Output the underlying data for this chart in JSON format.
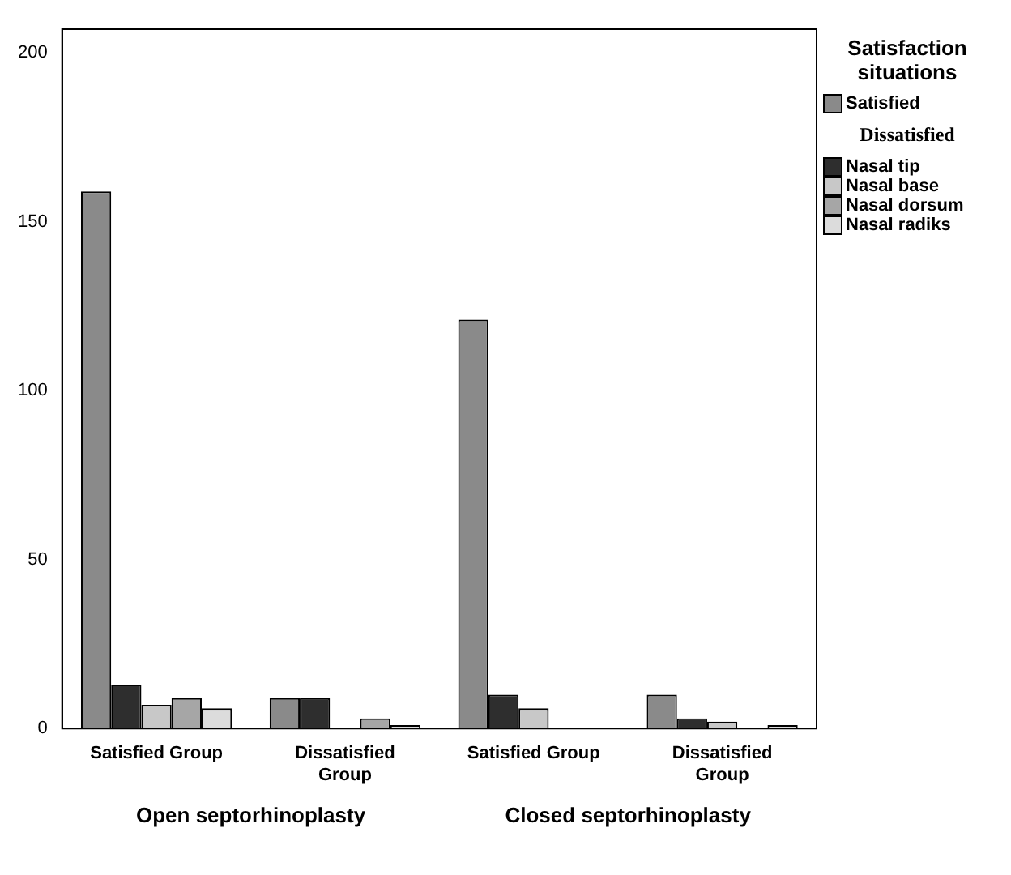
{
  "chart_data": {
    "type": "bar",
    "categories": [
      "Satisfied Group",
      "Dissatisfied Group",
      "Satisfied Group",
      "Dissatisfied Group"
    ],
    "legend_title": "Satisfaction situations",
    "annotations": [
      "Dissatisfied",
      "Open septorhinoplasty",
      "Closed septorhinoplasty"
    ],
    "series": [
      {
        "name": "Satisfied",
        "color": "#8a8a8a",
        "values": [
          159,
          9,
          121,
          10
        ]
      },
      {
        "name": "Nasal tip",
        "color": "#2e2e2e",
        "values": [
          13,
          9,
          10,
          3
        ]
      },
      {
        "name": "Nasal base",
        "color": "#c8c8c8",
        "values": [
          7,
          0,
          6,
          2
        ]
      },
      {
        "name": "Nasal dorsum",
        "color": "#a6a6a6",
        "values": [
          9,
          3,
          0,
          0
        ]
      },
      {
        "name": "Nasal radiks",
        "color": "#dcdcdc",
        "values": [
          6,
          1,
          0,
          1
        ]
      }
    ],
    "ylim": [
      0,
      207
    ],
    "yticks": [
      0,
      50,
      100,
      150,
      200
    ],
    "grid": false,
    "legend": "right"
  }
}
